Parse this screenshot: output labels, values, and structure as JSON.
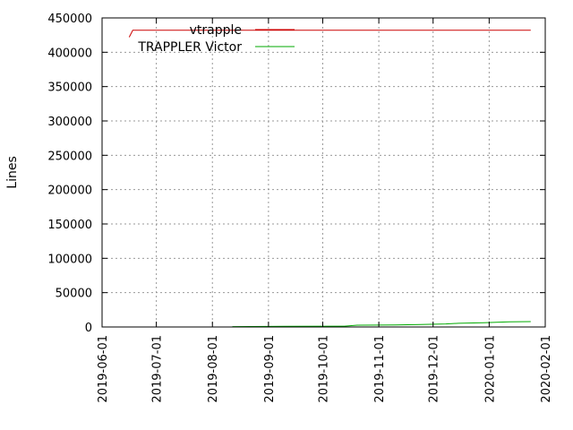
{
  "chart_data": {
    "type": "line",
    "xlabel": "",
    "ylabel": "Lines",
    "x_is_date": true,
    "xlim": [
      "2019-06-01",
      "2020-02-01"
    ],
    "xticks": [
      "2019-06-01",
      "2019-07-01",
      "2019-08-01",
      "2019-09-01",
      "2019-10-01",
      "2019-11-01",
      "2019-12-01",
      "2020-01-01",
      "2020-02-01"
    ],
    "ylim": [
      0,
      450000
    ],
    "yticks": [
      0,
      50000,
      100000,
      150000,
      200000,
      250000,
      300000,
      350000,
      400000,
      450000
    ],
    "grid": true,
    "legend_position": "top-left",
    "series": [
      {
        "name": "vtrapple",
        "color": "#cc0000",
        "points": [
          {
            "x": "2019-06-16",
            "y": 422000
          },
          {
            "x": "2019-06-18",
            "y": 432000
          },
          {
            "x": "2019-07-15",
            "y": 432000
          },
          {
            "x": "2019-09-01",
            "y": 432000
          },
          {
            "x": "2019-11-01",
            "y": 432000
          },
          {
            "x": "2020-01-24",
            "y": 432000
          }
        ]
      },
      {
        "name": "TRAPPLER Victor",
        "color": "#00aa00",
        "points": [
          {
            "x": "2019-08-12",
            "y": 500
          },
          {
            "x": "2019-09-10",
            "y": 900
          },
          {
            "x": "2019-10-13",
            "y": 1200
          },
          {
            "x": "2019-10-20",
            "y": 2600
          },
          {
            "x": "2019-11-10",
            "y": 3000
          },
          {
            "x": "2019-11-24",
            "y": 3600
          },
          {
            "x": "2019-12-08",
            "y": 4500
          },
          {
            "x": "2019-12-15",
            "y": 5300
          },
          {
            "x": "2019-12-29",
            "y": 6300
          },
          {
            "x": "2020-01-12",
            "y": 7400
          },
          {
            "x": "2020-01-24",
            "y": 7800
          }
        ]
      }
    ]
  }
}
